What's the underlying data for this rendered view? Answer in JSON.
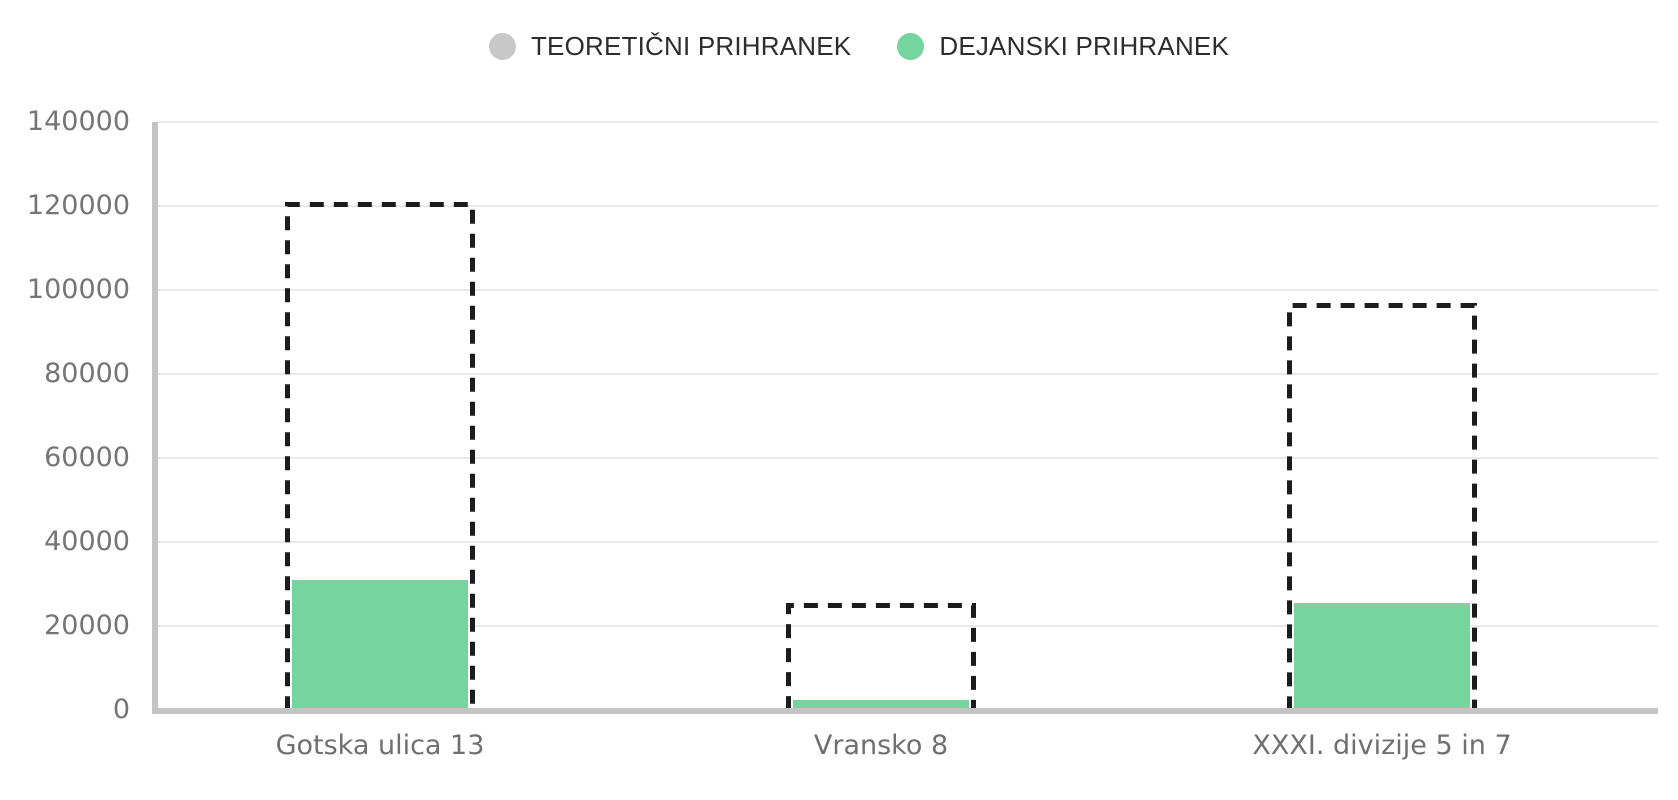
{
  "chart_data": {
    "type": "bar",
    "title": "",
    "categories": [
      "Gotska ulica 13",
      "Vransko 8",
      "XXXI. divizije 5 in 7"
    ],
    "series": [
      {
        "key": "theoretical",
        "name": "TEORETIČNI PRIHRANEK",
        "color": "#c8c8c8",
        "bar_style": "dashed-outline",
        "outline_color": "#1c1c1c",
        "values": [
          121000,
          25500,
          97000
        ]
      },
      {
        "key": "actual",
        "name": "DEJANSKI PRIHRANEK",
        "color": "#76d49e",
        "bar_style": "solid",
        "values": [
          31000,
          2500,
          25500
        ]
      }
    ],
    "xlabel": "",
    "ylabel": "",
    "ylim": [
      0,
      140000
    ],
    "ytick_step": 20000,
    "ytick_labels": [
      "0",
      "20000",
      "40000",
      "60000",
      "80000",
      "100000",
      "120000",
      "140000"
    ],
    "grid": "horizontal",
    "legend_position": "top"
  },
  "style": {
    "grid_color": "#e9e9e9",
    "axis_color": "#c4c4c4",
    "tick_text_color": "#757575",
    "category_text_color": "#6f6f6f",
    "legend_text_color": "#2d2d2d",
    "background": "#ffffff"
  }
}
